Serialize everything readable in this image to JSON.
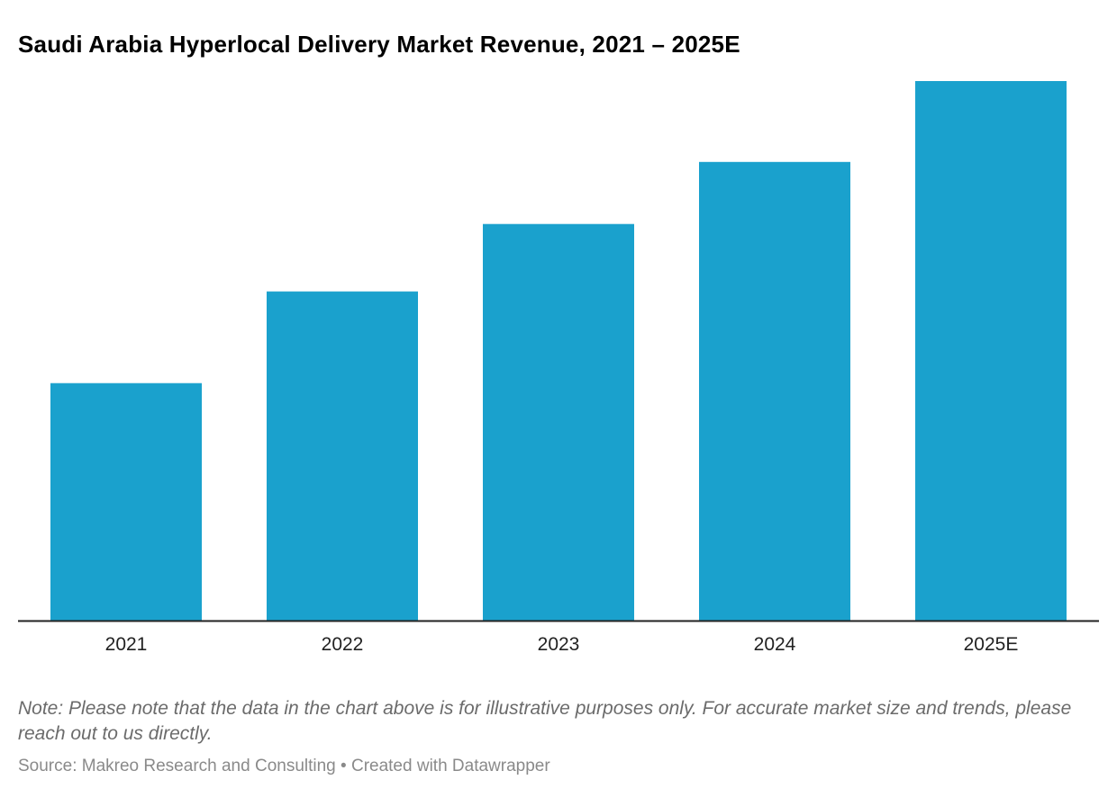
{
  "title": "Saudi Arabia Hyperlocal Delivery Market Revenue, 2021 – 2025E",
  "note": "Note: Please note that the data in the chart above is for illustrative purposes only. For accurate market size and trends, please reach out to us directly.",
  "source": {
    "text": "Source: Makreo Research and Consulting",
    "separator": "•",
    "credit": "Created with Datawrapper"
  },
  "colors": {
    "bar": "#1aa1cd",
    "axis": "#222222",
    "tick_label": "#222222"
  },
  "chart_data": {
    "type": "bar",
    "title": "Saudi Arabia Hyperlocal Delivery Market Revenue, 2021 – 2025E",
    "xlabel": "",
    "ylabel": "",
    "categories": [
      "2021",
      "2022",
      "2023",
      "2024",
      "2025E"
    ],
    "values": [
      44,
      61,
      73.5,
      85,
      100
    ],
    "ylim": [
      0,
      100
    ],
    "grid": false,
    "legend": "none"
  }
}
